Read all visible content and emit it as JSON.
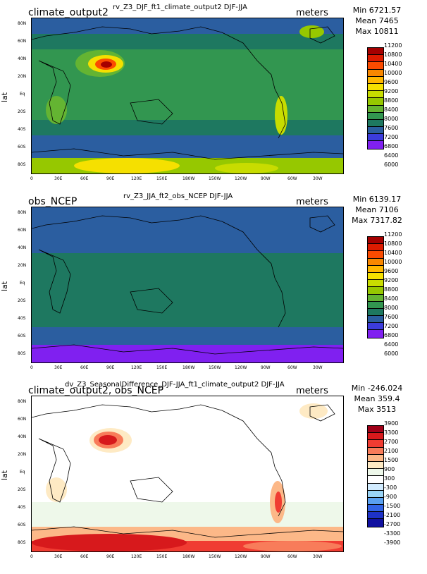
{
  "panels": [
    {
      "title": "rv_Z3_DJF_ft1_climate_output2  DJF-JJA",
      "label": "climate_output2",
      "units": "meters",
      "stats": [
        "Min 6721.57",
        "Mean 7465",
        "Max 10811"
      ],
      "lat_label": "lat",
      "levels": [
        "11200",
        "10800",
        "10400",
        "10000",
        "9600",
        "9200",
        "8800",
        "8400",
        "8000",
        "7600",
        "7200",
        "6800",
        "6400",
        "6000"
      ],
      "colors": [
        "#a50000",
        "#dd1b00",
        "#fb4b00",
        "#f88700",
        "#ffb700",
        "#f5e000",
        "#c8dc00",
        "#96c800",
        "#64b432",
        "#329650",
        "#1e7860",
        "#2b5ea0",
        "#3c3cdc",
        "#8020f0"
      ]
    },
    {
      "title": "rv_Z3_JJA_ft2_obs_NCEP  DJF-JJA",
      "label": "obs_NCEP",
      "units": "meters",
      "stats": [
        "Min 6139.17",
        "Mean 7106",
        "Max 7317.82"
      ],
      "lat_label": "lat",
      "levels": [
        "11200",
        "10800",
        "10400",
        "10000",
        "9600",
        "9200",
        "8800",
        "8400",
        "8000",
        "7600",
        "7200",
        "6800",
        "6400",
        "6000"
      ],
      "colors": [
        "#a50000",
        "#dd1b00",
        "#fb4b00",
        "#f88700",
        "#ffb700",
        "#f5e000",
        "#c8dc00",
        "#96c800",
        "#64b432",
        "#329650",
        "#1e7860",
        "#2b5ea0",
        "#3c3cdc",
        "#8020f0"
      ]
    },
    {
      "title": "dv_Z3_SeasonalDifference_DJF-JJA_ft1_climate_output2  DJF-JJA",
      "label": "climate_output2, obs_NCEP",
      "units": "meters",
      "stats": [
        "Min -246.024",
        "Mean 359.4",
        "Max 3513"
      ],
      "lat_label": "lat",
      "levels": [
        "3900",
        "3300",
        "2700",
        "2100",
        "1500",
        "900",
        "300",
        "-300",
        "-900",
        "-1500",
        "-2100",
        "-2700",
        "-3300",
        "-3900"
      ],
      "colors": [
        "#a00018",
        "#d7191c",
        "#f03c32",
        "#f87c5a",
        "#fcb888",
        "#feeac4",
        "#eef8ea",
        "#ffffff",
        "#d2ecff",
        "#9ad4f6",
        "#5aa0f0",
        "#3264e6",
        "#1e32c8",
        "#1010a0"
      ]
    }
  ],
  "lat_ticks": [
    "80N",
    "60N",
    "40N",
    "20N",
    "Eq",
    "20S",
    "40S",
    "60S",
    "80S"
  ],
  "lon_ticks": [
    "0",
    "30E",
    "60E",
    "90E",
    "120E",
    "150E",
    "180W",
    "150W",
    "120W",
    "90W",
    "60W",
    "30W"
  ]
}
